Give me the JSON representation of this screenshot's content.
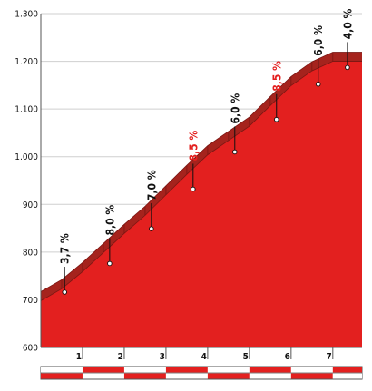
{
  "chart_data": {
    "type": "area",
    "title": "",
    "xlabel": "",
    "ylabel": "",
    "y_ticks": [
      "600",
      "700",
      "800",
      "900",
      "1.000",
      "1.100",
      "1.200",
      "1.300"
    ],
    "x_ticks": [
      "1",
      "2",
      "3",
      "4",
      "5",
      "6",
      "7"
    ],
    "xlim": [
      0,
      7.7
    ],
    "ylim": [
      600,
      1300
    ],
    "grid": "horizontal",
    "colors": {
      "fill": "#e3201f",
      "band": "#a5231d",
      "band_edge": "#7a1612",
      "grid": "#cfcfcf",
      "axis": "#555555",
      "label_normal": "#111111",
      "label_highlight": "#e3201f",
      "stripe_red": "#e3201f",
      "stripe_grey": "#d9d9d9"
    },
    "profile": [
      {
        "x": 0.0,
        "y": 698
      },
      {
        "x": 0.5,
        "y": 723
      },
      {
        "x": 1.0,
        "y": 759
      },
      {
        "x": 1.5,
        "y": 799
      },
      {
        "x": 2.0,
        "y": 839
      },
      {
        "x": 2.5,
        "y": 877
      },
      {
        "x": 3.0,
        "y": 920
      },
      {
        "x": 3.5,
        "y": 963
      },
      {
        "x": 4.0,
        "y": 1004
      },
      {
        "x": 4.5,
        "y": 1034
      },
      {
        "x": 5.0,
        "y": 1064
      },
      {
        "x": 5.5,
        "y": 1107
      },
      {
        "x": 6.0,
        "y": 1149
      },
      {
        "x": 6.5,
        "y": 1180
      },
      {
        "x": 7.0,
        "y": 1200
      },
      {
        "x": 7.7,
        "y": 1200
      }
    ],
    "gradients": [
      {
        "label": "3,7 %",
        "x": 0.57,
        "y": 716,
        "highlight": false
      },
      {
        "label": "8,0 %",
        "x": 1.65,
        "y": 776,
        "highlight": false
      },
      {
        "label": "7,0 %",
        "x": 2.65,
        "y": 849,
        "highlight": false
      },
      {
        "label": "8,5 %",
        "x": 3.65,
        "y": 932,
        "highlight": true
      },
      {
        "label": "6,0 %",
        "x": 4.65,
        "y": 1010,
        "highlight": false
      },
      {
        "label": "8,5 %",
        "x": 5.65,
        "y": 1078,
        "highlight": true
      },
      {
        "label": "6,0 %",
        "x": 6.65,
        "y": 1152,
        "highlight": false
      },
      {
        "label": "4,0 %",
        "x": 7.35,
        "y": 1187,
        "highlight": false
      }
    ]
  }
}
